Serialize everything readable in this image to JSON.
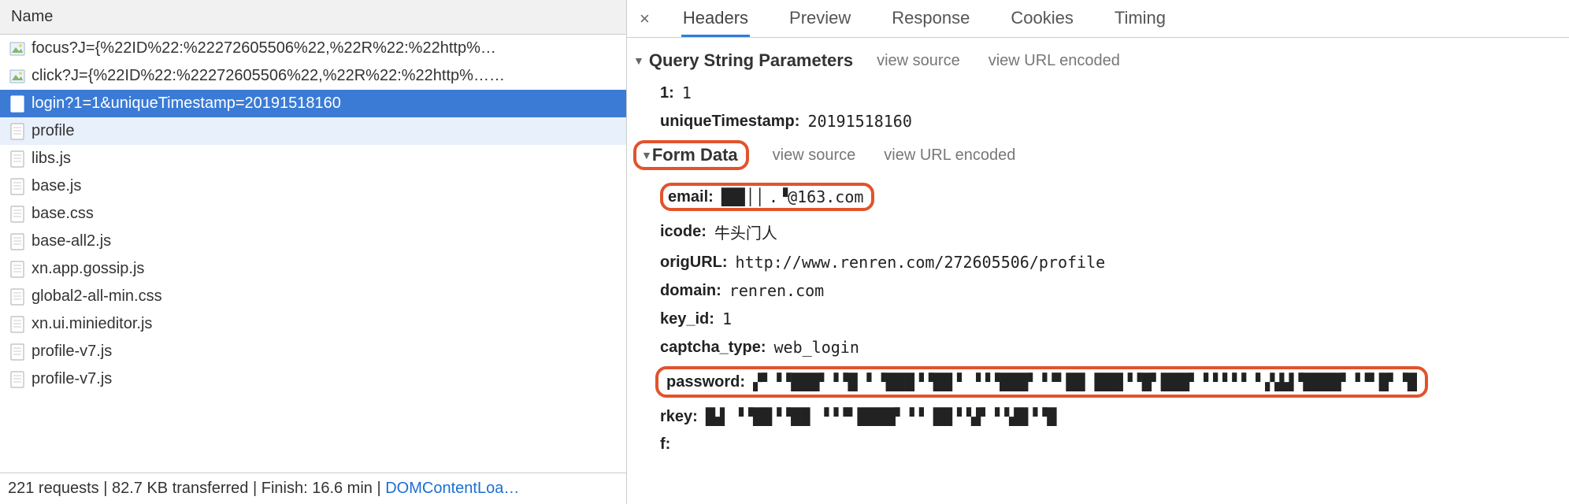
{
  "colors": {
    "selected_row_bg": "#3b7bd6",
    "hover_row_bg": "#e8f0fb",
    "tab_active_border": "#2b7fe0",
    "highlight_box_border": "#e2532b",
    "link_color": "#1a6fd4",
    "header_bg": "#f1f1f1",
    "border": "#cccccc"
  },
  "left": {
    "header": "Name",
    "files": [
      {
        "name": "focus?J={%22ID%22:%22272605506%22,%22R%22:%22http%…",
        "iconType": "img",
        "state": ""
      },
      {
        "name": "click?J={%22ID%22:%22272605506%22,%22R%22:%22http%……",
        "iconType": "img",
        "state": ""
      },
      {
        "name": "login?1=1&uniqueTimestamp=20191518160",
        "iconType": "doc",
        "state": "selected"
      },
      {
        "name": "profile",
        "iconType": "doc",
        "state": "hover"
      },
      {
        "name": "libs.js",
        "iconType": "doc",
        "state": ""
      },
      {
        "name": "base.js",
        "iconType": "doc",
        "state": ""
      },
      {
        "name": "base.css",
        "iconType": "doc",
        "state": ""
      },
      {
        "name": "base-all2.js",
        "iconType": "doc",
        "state": ""
      },
      {
        "name": "xn.app.gossip.js",
        "iconType": "doc",
        "state": ""
      },
      {
        "name": "global2-all-min.css",
        "iconType": "doc",
        "state": ""
      },
      {
        "name": "xn.ui.minieditor.js",
        "iconType": "doc",
        "state": ""
      },
      {
        "name": "profile-v7.js",
        "iconType": "doc",
        "state": ""
      },
      {
        "name": "profile-v7.js",
        "iconType": "doc",
        "state": ""
      }
    ],
    "status": {
      "requests": "221 requests",
      "transferred": "82.7 KB transferred",
      "finish": "Finish: 16.6 min",
      "domcontent": "DOMContentLoa…"
    }
  },
  "right": {
    "close": "×",
    "tabs": [
      {
        "label": "Headers",
        "active": true
      },
      {
        "label": "Preview",
        "active": false
      },
      {
        "label": "Response",
        "active": false
      },
      {
        "label": "Cookies",
        "active": false
      },
      {
        "label": "Timing",
        "active": false
      }
    ],
    "sections": [
      {
        "title": "Query String Parameters",
        "links": [
          "view source",
          "view URL encoded"
        ],
        "highlightTitle": false,
        "kv": [
          {
            "key": "1:",
            "val": "1",
            "mono": true
          },
          {
            "key": "uniqueTimestamp:",
            "val": "20191518160",
            "mono": true
          }
        ]
      },
      {
        "title": "Form Data",
        "links": [
          "view source",
          "view URL encoded"
        ],
        "highlightTitle": true,
        "kv": [
          {
            "key": "email:",
            "val": "██▌▏▏.▝@163.com",
            "mono": true,
            "highlightRow": true
          },
          {
            "key": "icode:",
            "val": "牛头门人",
            "mono": true
          },
          {
            "key": "origURL:",
            "val": "http://www.renren.com/272605506/profile",
            "mono": true
          },
          {
            "key": "domain:",
            "val": "renren.com",
            "mono": true
          },
          {
            "key": "key_id:",
            "val": "1",
            "mono": true
          },
          {
            "key": "captcha_type:",
            "val": "web_login",
            "mono": true
          },
          {
            "key": "password:",
            "val": "▞▘▝▝███▘▝▝█ ▘▝███▝▝██▝ ▝▝▝███▘▝▝▘██ ███▝▝█▘███▘▝▝▝▝▝ ▘▞▟▟▝████▘▝▝▘█▘▝█",
            "mono": true,
            "highlightRow": true,
            "wide": true
          },
          {
            "key": "rkey:",
            "val": "█▟ ▝▝██▝▝██ ▝▝▝▘████▘▝▝ ██▝▝▟▘▝▝▟█▝▝█",
            "mono": true
          },
          {
            "key": "f:",
            "val": "",
            "mono": true
          }
        ]
      }
    ]
  }
}
